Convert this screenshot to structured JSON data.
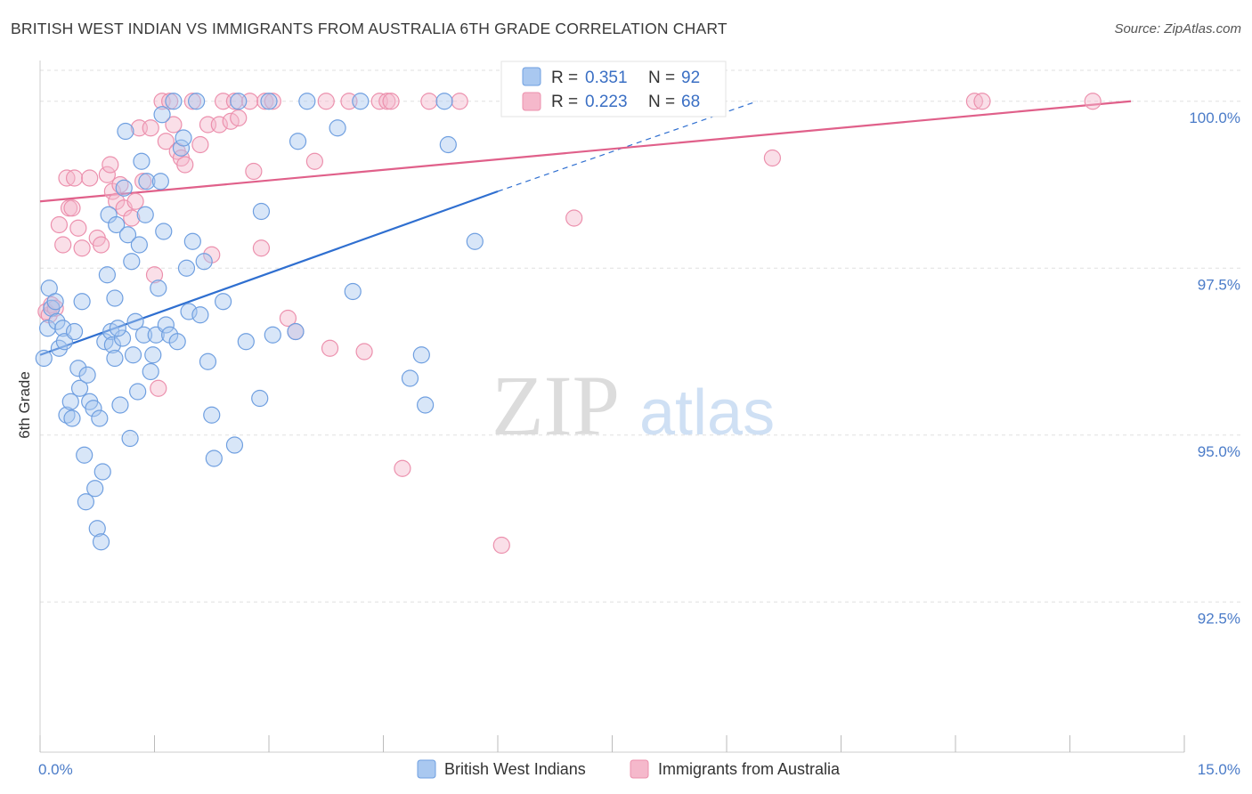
{
  "title": "BRITISH WEST INDIAN VS IMMIGRANTS FROM AUSTRALIA 6TH GRADE CORRELATION CHART",
  "source": "Source: ZipAtlas.com",
  "watermark": {
    "zip": "ZIP",
    "atlas": "atlas"
  },
  "legend_top": [
    {
      "r_label": "R =",
      "r_value": "0.351",
      "n_label": "N =",
      "n_value": "92"
    },
    {
      "r_label": "R =",
      "r_value": "0.223",
      "n_label": "N =",
      "n_value": "68"
    }
  ],
  "legend_bottom": [
    "British West Indians",
    "Immigrants from Australia"
  ],
  "colors": {
    "blue_fill": "#a9c8f0",
    "blue_stroke": "#6f9fe0",
    "blue_line": "#2f6fd0",
    "pink_fill": "#f5b8cb",
    "pink_stroke": "#ec90ad",
    "pink_line": "#e0608a",
    "grid": "#e0e0e0",
    "axis_text": "#4a7bc8"
  },
  "chart_data": {
    "type": "scatter",
    "title": "BRITISH WEST INDIAN VS IMMIGRANTS FROM AUSTRALIA 6TH GRADE CORRELATION CHART",
    "xlabel": "",
    "ylabel": "6th Grade",
    "xlim": [
      0,
      15
    ],
    "ylim": [
      90.25,
      100.45
    ],
    "x_ticks": [
      "0.0%",
      "15.0%"
    ],
    "y_ticks": [
      {
        "value": 100.0,
        "label": "100.0%"
      },
      {
        "value": 97.5,
        "label": "97.5%"
      },
      {
        "value": 95.0,
        "label": "95.0%"
      },
      {
        "value": 92.5,
        "label": "92.5%"
      }
    ],
    "grid": true,
    "legend_placement": "top-center",
    "series": [
      {
        "name": "British West Indians",
        "color": "#a9c8f0",
        "R": 0.351,
        "N": 92,
        "trend": {
          "x0": 0.0,
          "y0": 96.2,
          "x1": 6.0,
          "y1": 98.65,
          "dash_to_x": 9.4,
          "dash_to_y": 100.0
        },
        "points": [
          [
            0.05,
            96.15
          ],
          [
            0.1,
            96.6
          ],
          [
            0.12,
            97.2
          ],
          [
            0.15,
            96.9
          ],
          [
            0.2,
            97.0
          ],
          [
            0.22,
            96.7
          ],
          [
            0.25,
            96.3
          ],
          [
            0.3,
            96.6
          ],
          [
            0.32,
            96.4
          ],
          [
            0.35,
            95.3
          ],
          [
            0.4,
            95.5
          ],
          [
            0.42,
            95.25
          ],
          [
            0.45,
            96.55
          ],
          [
            0.5,
            96.0
          ],
          [
            0.52,
            95.7
          ],
          [
            0.55,
            97.0
          ],
          [
            0.58,
            94.7
          ],
          [
            0.6,
            94.0
          ],
          [
            0.62,
            95.9
          ],
          [
            0.65,
            95.5
          ],
          [
            0.7,
            95.4
          ],
          [
            0.72,
            94.2
          ],
          [
            0.75,
            93.6
          ],
          [
            0.78,
            95.25
          ],
          [
            0.8,
            93.4
          ],
          [
            0.82,
            94.45
          ],
          [
            0.85,
            96.4
          ],
          [
            0.88,
            97.4
          ],
          [
            0.9,
            98.3
          ],
          [
            0.93,
            96.55
          ],
          [
            0.95,
            96.35
          ],
          [
            0.98,
            97.05
          ],
          [
            1.0,
            98.15
          ],
          [
            1.05,
            95.45
          ],
          [
            1.08,
            96.45
          ],
          [
            1.1,
            98.7
          ],
          [
            1.12,
            99.55
          ],
          [
            1.15,
            98.0
          ],
          [
            1.18,
            94.95
          ],
          [
            1.2,
            97.6
          ],
          [
            1.22,
            96.2
          ],
          [
            1.25,
            96.7
          ],
          [
            1.28,
            95.65
          ],
          [
            1.3,
            97.85
          ],
          [
            1.33,
            99.1
          ],
          [
            1.36,
            96.5
          ],
          [
            1.38,
            98.3
          ],
          [
            1.4,
            98.8
          ],
          [
            1.45,
            95.95
          ],
          [
            1.48,
            96.2
          ],
          [
            1.52,
            96.5
          ],
          [
            1.55,
            97.2
          ],
          [
            1.6,
            99.8
          ],
          [
            1.62,
            98.05
          ],
          [
            1.65,
            96.65
          ],
          [
            1.7,
            96.5
          ],
          [
            1.75,
            100.0
          ],
          [
            1.8,
            96.4
          ],
          [
            1.85,
            99.3
          ],
          [
            1.88,
            99.45
          ],
          [
            1.92,
            97.5
          ],
          [
            1.95,
            96.85
          ],
          [
            2.0,
            97.9
          ],
          [
            2.05,
            100.0
          ],
          [
            2.1,
            96.8
          ],
          [
            2.15,
            97.6
          ],
          [
            2.2,
            96.1
          ],
          [
            2.25,
            95.3
          ],
          [
            2.28,
            94.65
          ],
          [
            2.4,
            97.0
          ],
          [
            2.55,
            94.85
          ],
          [
            2.7,
            96.4
          ],
          [
            2.88,
            95.55
          ],
          [
            2.9,
            98.35
          ],
          [
            3.05,
            96.5
          ],
          [
            3.35,
            96.55
          ],
          [
            3.38,
            99.4
          ],
          [
            3.5,
            100.0
          ],
          [
            3.9,
            99.6
          ],
          [
            4.1,
            97.15
          ],
          [
            4.2,
            100.0
          ],
          [
            4.85,
            95.85
          ],
          [
            5.0,
            96.2
          ],
          [
            5.05,
            95.45
          ],
          [
            5.3,
            100.0
          ],
          [
            5.35,
            99.35
          ],
          [
            5.7,
            97.9
          ],
          [
            1.58,
            98.8
          ],
          [
            0.98,
            96.15
          ],
          [
            1.02,
            96.6
          ],
          [
            2.6,
            100.0
          ],
          [
            3.0,
            100.0
          ]
        ]
      },
      {
        "name": "Immigrants from Australia",
        "color": "#f5b8cb",
        "R": 0.223,
        "N": 68,
        "trend": {
          "x0": 0.0,
          "y0": 98.5,
          "x1": 14.3,
          "y1": 100.0
        },
        "points": [
          [
            0.08,
            96.85
          ],
          [
            0.12,
            96.8
          ],
          [
            0.15,
            96.95
          ],
          [
            0.2,
            96.9
          ],
          [
            0.25,
            98.15
          ],
          [
            0.3,
            97.85
          ],
          [
            0.35,
            98.85
          ],
          [
            0.38,
            98.4
          ],
          [
            0.42,
            98.4
          ],
          [
            0.45,
            98.85
          ],
          [
            0.5,
            98.1
          ],
          [
            0.55,
            97.8
          ],
          [
            0.65,
            98.85
          ],
          [
            0.75,
            97.95
          ],
          [
            0.8,
            97.85
          ],
          [
            0.88,
            98.9
          ],
          [
            0.92,
            99.05
          ],
          [
            0.95,
            98.65
          ],
          [
            1.0,
            98.5
          ],
          [
            1.05,
            98.75
          ],
          [
            1.1,
            98.4
          ],
          [
            1.2,
            98.25
          ],
          [
            1.25,
            98.5
          ],
          [
            1.3,
            99.6
          ],
          [
            1.35,
            98.8
          ],
          [
            1.45,
            99.6
          ],
          [
            1.5,
            97.4
          ],
          [
            1.55,
            95.7
          ],
          [
            1.6,
            100.0
          ],
          [
            1.65,
            99.4
          ],
          [
            1.7,
            100.0
          ],
          [
            1.75,
            99.65
          ],
          [
            1.8,
            99.25
          ],
          [
            1.85,
            99.15
          ],
          [
            1.9,
            99.05
          ],
          [
            2.0,
            100.0
          ],
          [
            2.1,
            99.35
          ],
          [
            2.2,
            99.65
          ],
          [
            2.25,
            97.7
          ],
          [
            2.35,
            99.65
          ],
          [
            2.4,
            100.0
          ],
          [
            2.5,
            99.7
          ],
          [
            2.55,
            100.0
          ],
          [
            2.6,
            99.75
          ],
          [
            2.75,
            100.0
          ],
          [
            2.8,
            98.95
          ],
          [
            2.95,
            100.0
          ],
          [
            3.05,
            100.0
          ],
          [
            3.25,
            96.75
          ],
          [
            3.35,
            96.55
          ],
          [
            3.6,
            99.1
          ],
          [
            3.75,
            100.0
          ],
          [
            3.8,
            96.3
          ],
          [
            4.05,
            100.0
          ],
          [
            4.25,
            96.25
          ],
          [
            4.45,
            100.0
          ],
          [
            4.55,
            100.0
          ],
          [
            4.75,
            94.5
          ],
          [
            5.1,
            100.0
          ],
          [
            5.5,
            100.0
          ],
          [
            6.05,
            93.35
          ],
          [
            7.0,
            98.25
          ],
          [
            9.6,
            99.15
          ],
          [
            12.25,
            100.0
          ],
          [
            12.35,
            100.0
          ],
          [
            13.8,
            100.0
          ],
          [
            2.9,
            97.8
          ],
          [
            4.6,
            100.0
          ]
        ]
      }
    ]
  }
}
